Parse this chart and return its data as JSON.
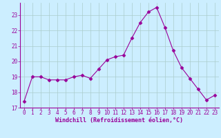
{
  "x": [
    0,
    1,
    2,
    3,
    4,
    5,
    6,
    7,
    8,
    9,
    10,
    11,
    12,
    13,
    14,
    15,
    16,
    17,
    18,
    19,
    20,
    21,
    22,
    23
  ],
  "y": [
    17.4,
    19.0,
    19.0,
    18.8,
    18.8,
    18.8,
    19.0,
    19.1,
    18.9,
    19.5,
    20.1,
    20.3,
    20.4,
    21.5,
    22.5,
    23.2,
    23.5,
    22.2,
    20.7,
    19.6,
    18.9,
    18.2,
    17.5,
    17.8
  ],
  "line_color": "#990099",
  "marker": "D",
  "marker_size": 2.5,
  "bg_color": "#cceeff",
  "grid_color": "#aacccc",
  "xlabel": "Windchill (Refroidissement éolien,°C)",
  "xlabel_color": "#990099",
  "tick_color": "#990099",
  "ylim": [
    17,
    23.8
  ],
  "xlim": [
    -0.5,
    23.5
  ],
  "yticks": [
    17,
    18,
    19,
    20,
    21,
    22,
    23
  ],
  "xticks": [
    0,
    1,
    2,
    3,
    4,
    5,
    6,
    7,
    8,
    9,
    10,
    11,
    12,
    13,
    14,
    15,
    16,
    17,
    18,
    19,
    20,
    21,
    22,
    23
  ],
  "spine_color": "#990099",
  "tick_fontsize": 5.5,
  "xlabel_fontsize": 6.0
}
